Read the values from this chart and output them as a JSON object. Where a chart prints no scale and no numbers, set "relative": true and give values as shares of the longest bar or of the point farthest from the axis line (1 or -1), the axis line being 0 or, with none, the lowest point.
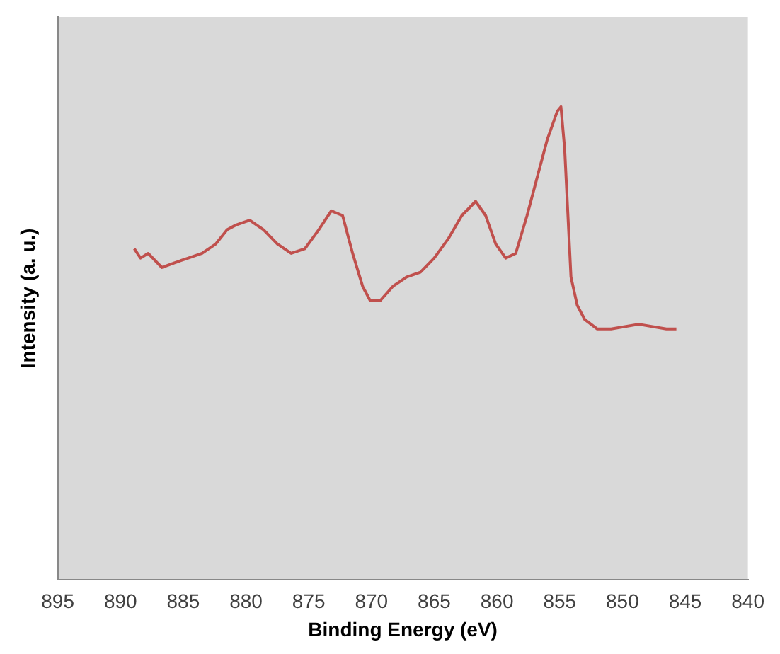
{
  "chart_data": {
    "type": "line",
    "xlabel": "Binding Energy (eV)",
    "ylabel": "Intensity (a. u.)",
    "relative": true,
    "xlim": [
      895,
      840
    ],
    "xticks": [
      895,
      890,
      885,
      880,
      875,
      870,
      865,
      860,
      855,
      850,
      845,
      840
    ],
    "grid": false,
    "legend": false,
    "marker": "none",
    "line_style": "solid",
    "series": [
      {
        "color": "#c0504d",
        "x": [
          888.9,
          888.4,
          887.8,
          886.7,
          885.7,
          884.6,
          883.5,
          882.4,
          881.5,
          880.8,
          879.7,
          878.6,
          877.5,
          876.4,
          875.3,
          874.2,
          873.2,
          872.3,
          871.5,
          870.7,
          870.1,
          869.3,
          868.3,
          867.2,
          866.1,
          865.0,
          863.9,
          862.8,
          861.7,
          860.9,
          860.1,
          859.3,
          858.5,
          857.6,
          856.8,
          856.0,
          855.2,
          854.9,
          854.6,
          854.1,
          853.6,
          853.0,
          852.0,
          850.9,
          848.7,
          846.5,
          845.7
        ],
        "values": [
          0.7,
          0.68,
          0.69,
          0.66,
          0.67,
          0.68,
          0.69,
          0.71,
          0.74,
          0.75,
          0.76,
          0.74,
          0.71,
          0.69,
          0.7,
          0.74,
          0.78,
          0.77,
          0.69,
          0.62,
          0.59,
          0.59,
          0.62,
          0.64,
          0.65,
          0.68,
          0.72,
          0.77,
          0.8,
          0.77,
          0.71,
          0.68,
          0.69,
          0.77,
          0.85,
          0.93,
          0.99,
          1.0,
          0.91,
          0.64,
          0.58,
          0.55,
          0.53,
          0.53,
          0.54,
          0.53,
          0.53
        ]
      }
    ]
  }
}
